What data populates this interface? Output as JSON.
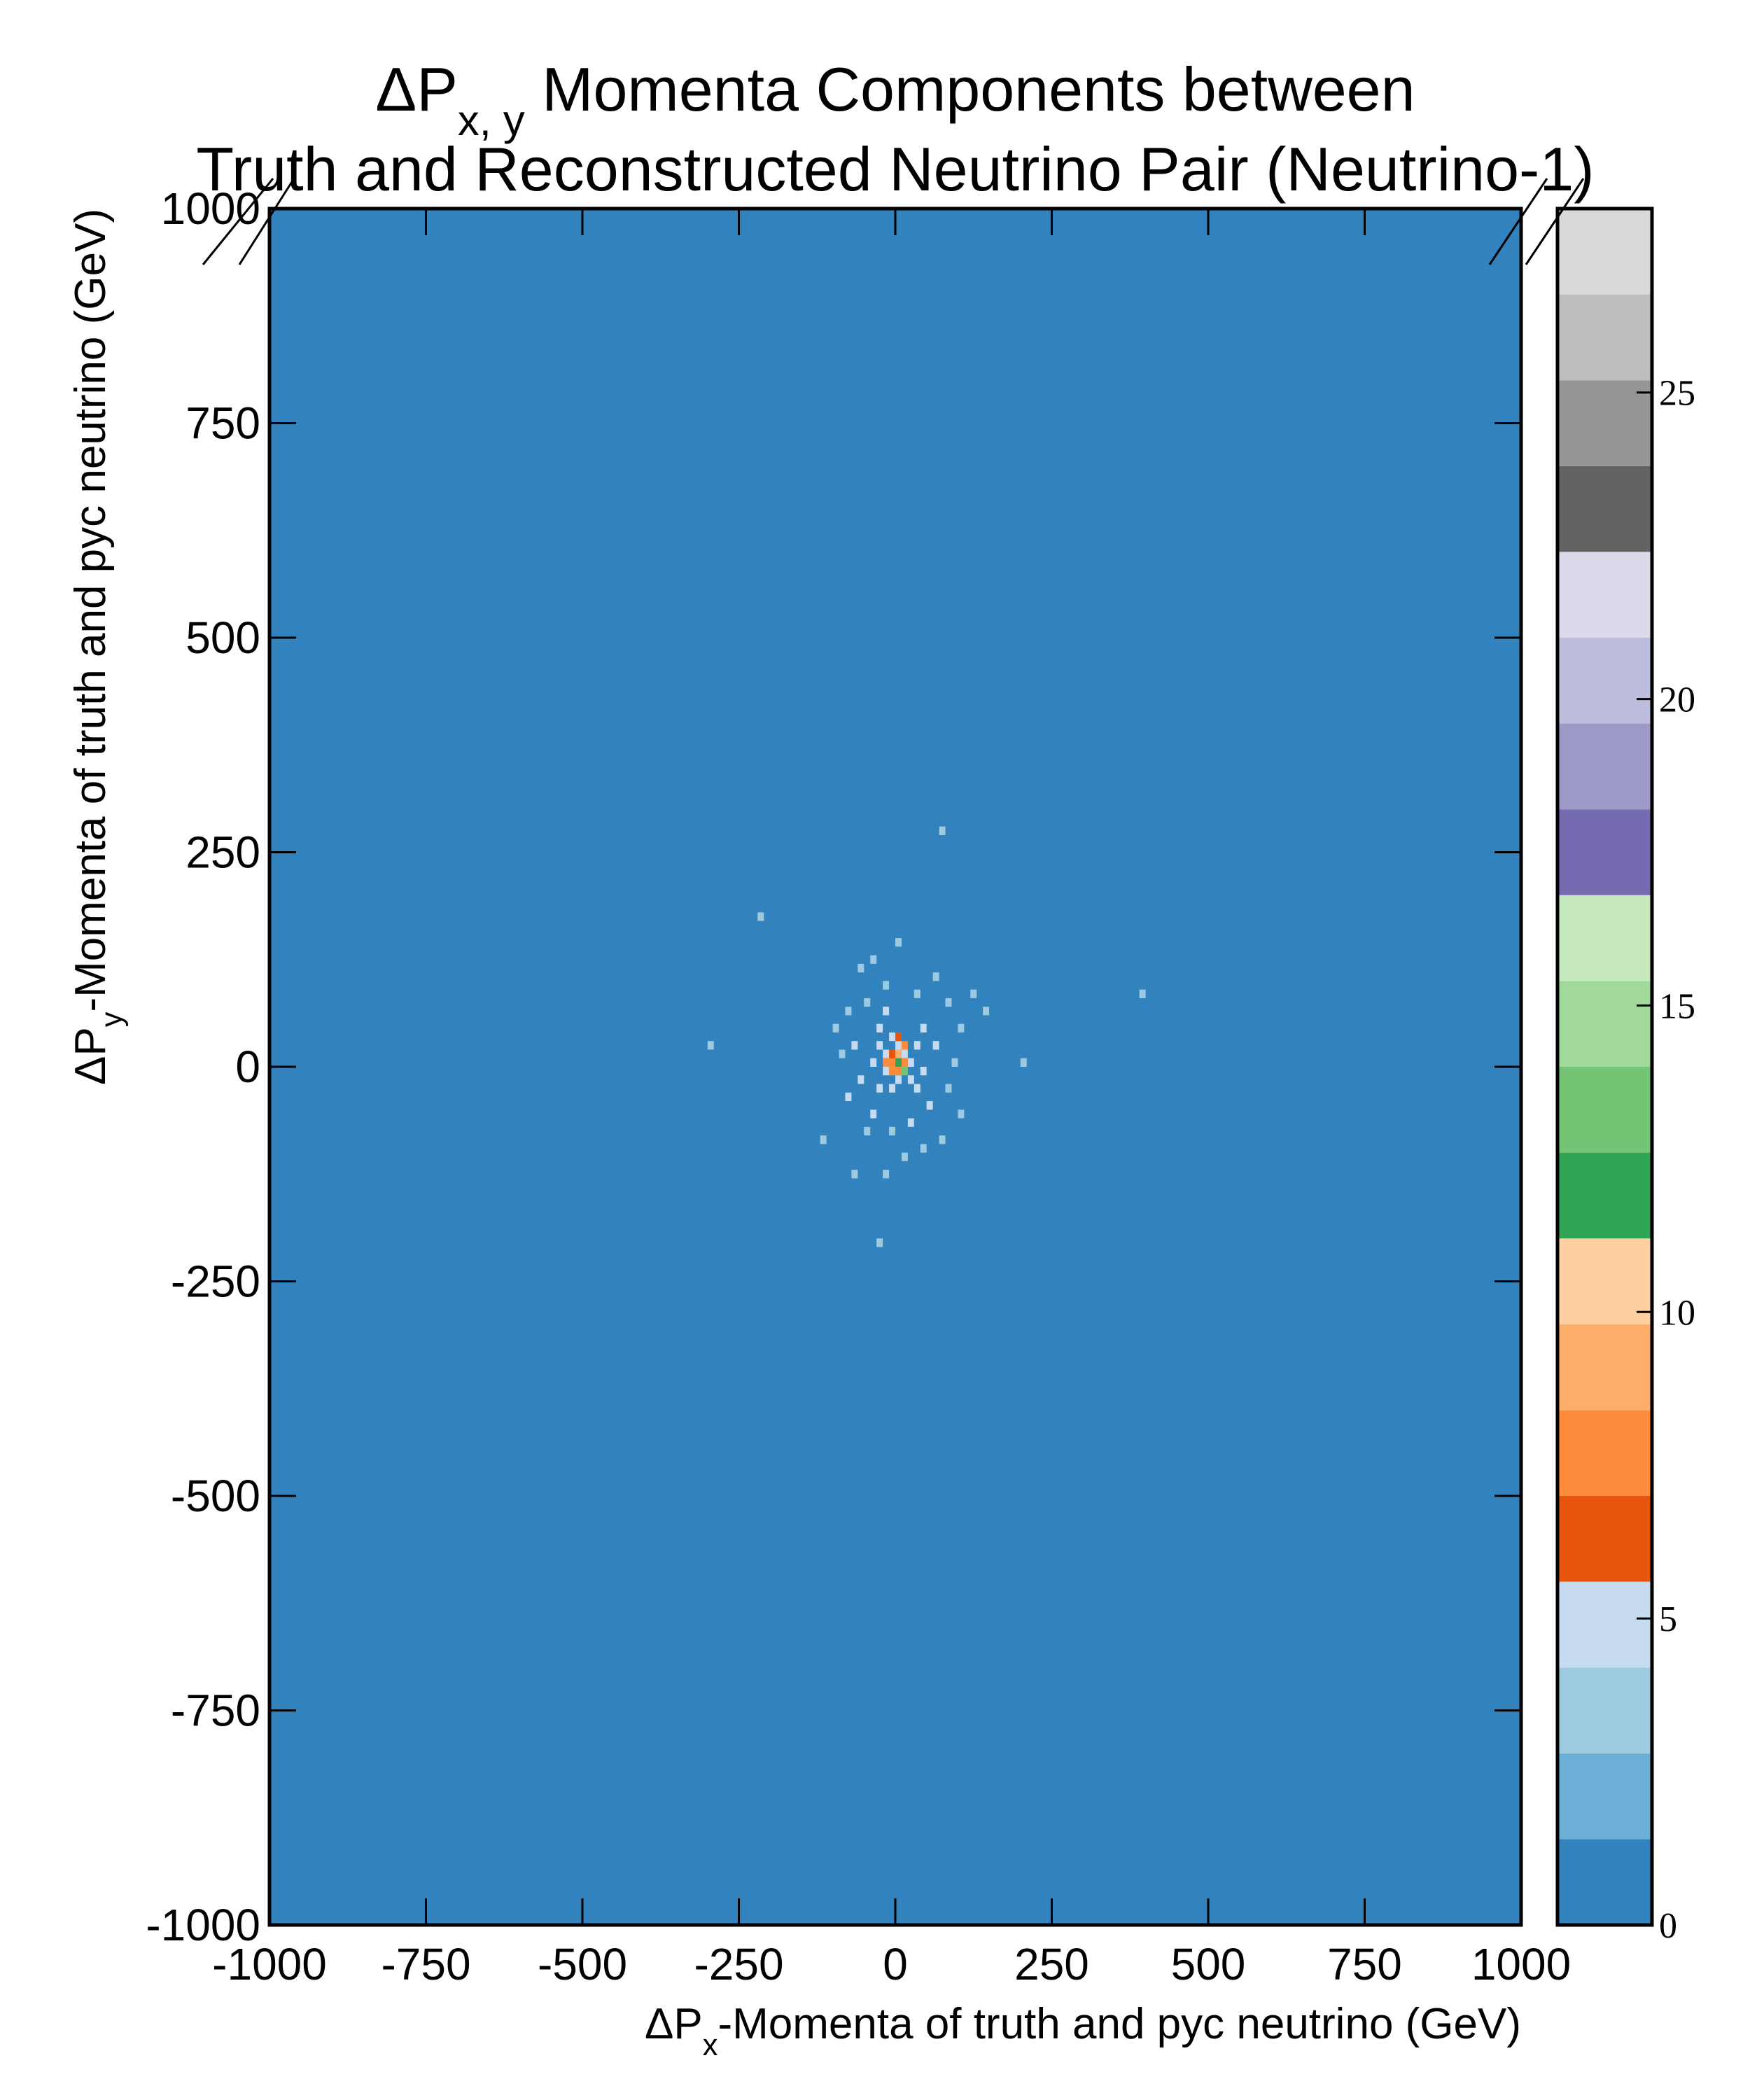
{
  "chart_data": {
    "type": "heatmap",
    "title": [
      [
        {
          "text": "ΔP"
        },
        {
          "text": "x, y",
          "sub": true
        },
        {
          "text": " Momenta Components between"
        }
      ],
      [
        {
          "text": "Truth and Reconstructed Neutrino Pair (Neutrino-1)"
        }
      ]
    ],
    "xlabel": [
      {
        "text": "ΔP"
      },
      {
        "text": "x",
        "sub": true
      },
      {
        "text": "-Momenta of truth and pyc neutrino (GeV)"
      }
    ],
    "ylabel": [
      {
        "text": "ΔP"
      },
      {
        "text": "y",
        "sub": true
      },
      {
        "text": "-Momenta of truth and pyc neutrino (GeV)"
      }
    ],
    "xlim": [
      -1000,
      1000
    ],
    "ylim": [
      -1000,
      1000
    ],
    "xticks": [
      -1000,
      -750,
      -500,
      -250,
      0,
      250,
      500,
      750,
      1000
    ],
    "yticks": [
      -1000,
      -750,
      -500,
      -250,
      0,
      250,
      500,
      750,
      1000
    ],
    "bin_width": 10,
    "cells": {
      "x": [
        70,
        -220,
        390,
        -300,
        200,
        -30,
        -120,
        100,
        -70,
        -20,
        -60,
        -40,
        0,
        60,
        140,
        120,
        -80,
        -50,
        -20,
        30,
        80,
        100,
        -100,
        -70,
        -60,
        -80,
        -40,
        -10,
        20,
        50,
        80,
        60,
        40,
        -30,
        -50,
        10,
        40,
        70,
        -20,
        90,
        -90,
        30,
        -30,
        -30,
        -20,
        -10,
        0,
        10,
        20,
        -20,
        0,
        20,
        -10,
        30,
        -40,
        40,
        -10,
        0,
        10,
        0,
        -10,
        10,
        0,
        -10,
        10,
        0,
        -20
      ],
      "y": [
        270,
        170,
        80,
        20,
        0,
        -210,
        -90,
        -60,
        -130,
        -130,
        110,
        120,
        140,
        100,
        60,
        80,
        60,
        70,
        90,
        80,
        70,
        40,
        40,
        20,
        -20,
        -40,
        -60,
        -80,
        -70,
        -50,
        -30,
        20,
        40,
        40,
        -80,
        -110,
        -100,
        -90,
        60,
        0,
        10,
        -30,
        -30,
        20,
        10,
        30,
        20,
        10,
        0,
        -10,
        -20,
        -20,
        -30,
        20,
        0,
        -10,
        0,
        0,
        0,
        10,
        -10,
        -10,
        -10,
        10,
        20,
        30,
        0
      ],
      "values": [
        3,
        3,
        3,
        3,
        3,
        3,
        3,
        3,
        3,
        3,
        3,
        3,
        3,
        3,
        3,
        3,
        3,
        3,
        3,
        3,
        3,
        3,
        3,
        5,
        5,
        5,
        5,
        3,
        5,
        5,
        3,
        5,
        5,
        5,
        3,
        3,
        3,
        3,
        5,
        3,
        3,
        5,
        5,
        5,
        5,
        5,
        5,
        5,
        5,
        5,
        5,
        5,
        5,
        5,
        5,
        5,
        8,
        12,
        7,
        9,
        7,
        13,
        8,
        6,
        7,
        6,
        8
      ]
    },
    "colorbar": {
      "lim": [
        0,
        28
      ],
      "ticks": [
        0,
        5,
        10,
        15,
        20,
        25
      ],
      "colors": [
        "#3182bd",
        "#6baed6",
        "#9ecae1",
        "#c6dbef",
        "#e6550d",
        "#fd8d3c",
        "#fdae6b",
        "#fdd0a2",
        "#31a354",
        "#74c476",
        "#a1d99b",
        "#c7e9c0",
        "#756bb1",
        "#9e9ac8",
        "#bcbddc",
        "#dadaeb",
        "#636363",
        "#969696",
        "#bdbdbd",
        "#d9d9d9"
      ]
    }
  }
}
